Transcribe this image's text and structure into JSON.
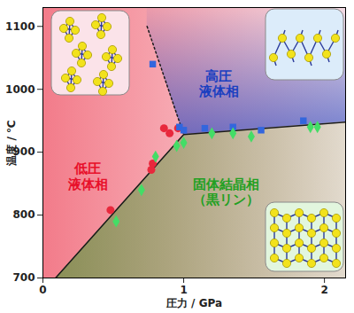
{
  "chart_data": {
    "type": "scatter",
    "xlabel": "圧力 / GPa",
    "ylabel": "温度 / ℃",
    "xlim": [
      0,
      2.15
    ],
    "ylim": [
      700,
      1130
    ],
    "xticks": [
      0,
      1,
      2
    ],
    "yticks": [
      700,
      800,
      900,
      1000,
      1100
    ],
    "series": [
      {
        "type": "line",
        "line_style": "solid",
        "color": "#1a1a1a",
        "x": [
          0.09,
          1.0,
          2.15
        ],
        "values": [
          700,
          928,
          948
        ]
      },
      {
        "type": "line",
        "line_style": "dotted",
        "color": "#1a1a1a",
        "x": [
          0.74,
          1.0
        ],
        "values": [
          1100,
          928
        ]
      },
      {
        "type": "scatter",
        "marker": "circle",
        "color": "#e8283c",
        "x": [
          0.48,
          0.77,
          0.78,
          0.86,
          0.9,
          0.96
        ],
        "values": [
          808,
          872,
          882,
          938,
          930,
          938
        ]
      },
      {
        "type": "scatter",
        "marker": "square",
        "color": "#3366dd",
        "x": [
          0.78,
          0.97,
          1.0,
          1.15,
          1.35,
          1.55,
          1.85
        ],
        "values": [
          1040,
          940,
          935,
          938,
          940,
          935,
          950
        ]
      },
      {
        "type": "scatter",
        "marker": "diamond",
        "color": "#44dd66",
        "x": [
          0.52,
          0.7,
          0.8,
          0.95,
          1.0,
          1.2,
          1.35,
          1.48,
          1.9,
          1.95
        ],
        "values": [
          790,
          840,
          893,
          910,
          915,
          930,
          930,
          925,
          940,
          940
        ]
      }
    ],
    "annotations": [
      {
        "text": "低圧\n液体相",
        "x": 0.32,
        "y": 862,
        "color": "#e8102a"
      },
      {
        "text": "高圧\n液体相",
        "x": 1.25,
        "y": 1010,
        "color": "#1a3fc0"
      },
      {
        "text": "固体結晶相\n（黒リン）",
        "x": 1.3,
        "y": 838,
        "color": "#22a022"
      }
    ]
  }
}
